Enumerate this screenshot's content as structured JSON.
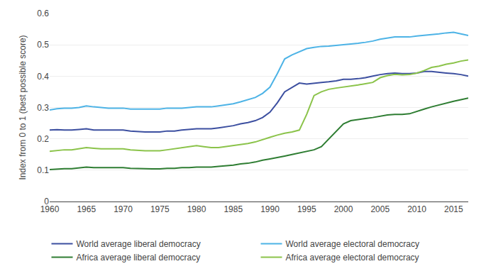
{
  "chart_data": {
    "type": "line",
    "x": [
      1960,
      1961,
      1962,
      1963,
      1964,
      1965,
      1966,
      1967,
      1968,
      1969,
      1970,
      1971,
      1972,
      1973,
      1974,
      1975,
      1976,
      1977,
      1978,
      1979,
      1980,
      1981,
      1982,
      1983,
      1984,
      1985,
      1986,
      1987,
      1988,
      1989,
      1990,
      1991,
      1992,
      1993,
      1994,
      1995,
      1996,
      1997,
      1998,
      1999,
      2000,
      2001,
      2002,
      2003,
      2004,
      2005,
      2006,
      2007,
      2008,
      2009,
      2010,
      2011,
      2012,
      2013,
      2014,
      2015,
      2016,
      2017
    ],
    "series": [
      {
        "name": "World average liberal democracy",
        "color": "#3c4fa0",
        "values": [
          0.228,
          0.229,
          0.228,
          0.228,
          0.23,
          0.232,
          0.228,
          0.228,
          0.228,
          0.228,
          0.228,
          0.225,
          0.223,
          0.222,
          0.222,
          0.222,
          0.225,
          0.225,
          0.228,
          0.23,
          0.232,
          0.232,
          0.232,
          0.235,
          0.238,
          0.242,
          0.248,
          0.252,
          0.258,
          0.268,
          0.285,
          0.315,
          0.35,
          0.365,
          0.378,
          0.375,
          0.378,
          0.38,
          0.382,
          0.385,
          0.39,
          0.39,
          0.392,
          0.395,
          0.4,
          0.405,
          0.408,
          0.41,
          0.408,
          0.408,
          0.41,
          0.415,
          0.415,
          0.412,
          0.41,
          0.408,
          0.405,
          0.4
        ]
      },
      {
        "name": "World average electoral democracy",
        "color": "#4db3e6",
        "values": [
          0.292,
          0.296,
          0.298,
          0.298,
          0.3,
          0.305,
          0.302,
          0.3,
          0.298,
          0.298,
          0.298,
          0.295,
          0.295,
          0.295,
          0.295,
          0.295,
          0.298,
          0.298,
          0.298,
          0.3,
          0.302,
          0.302,
          0.302,
          0.305,
          0.308,
          0.312,
          0.318,
          0.325,
          0.332,
          0.345,
          0.365,
          0.408,
          0.455,
          0.468,
          0.478,
          0.488,
          0.492,
          0.495,
          0.496,
          0.498,
          0.5,
          0.502,
          0.505,
          0.508,
          0.512,
          0.518,
          0.522,
          0.525,
          0.525,
          0.525,
          0.528,
          0.53,
          0.532,
          0.535,
          0.538,
          0.54,
          0.535,
          0.53
        ]
      },
      {
        "name": "Africa average liberal democracy",
        "color": "#2e7d32",
        "values": [
          0.102,
          0.104,
          0.105,
          0.105,
          0.108,
          0.11,
          0.108,
          0.108,
          0.108,
          0.108,
          0.108,
          0.106,
          0.105,
          0.104,
          0.104,
          0.104,
          0.106,
          0.106,
          0.108,
          0.108,
          0.11,
          0.11,
          0.11,
          0.112,
          0.114,
          0.116,
          0.12,
          0.122,
          0.126,
          0.132,
          0.136,
          0.14,
          0.145,
          0.15,
          0.155,
          0.16,
          0.165,
          0.175,
          0.2,
          0.225,
          0.248,
          0.258,
          0.262,
          0.265,
          0.268,
          0.272,
          0.276,
          0.278,
          0.278,
          0.28,
          0.288,
          0.295,
          0.302,
          0.308,
          0.315,
          0.32,
          0.325,
          0.33
        ]
      },
      {
        "name": "Africa average electoral democracy",
        "color": "#8bc34a",
        "values": [
          0.16,
          0.163,
          0.165,
          0.165,
          0.168,
          0.172,
          0.17,
          0.168,
          0.168,
          0.168,
          0.168,
          0.165,
          0.163,
          0.162,
          0.162,
          0.162,
          0.165,
          0.168,
          0.172,
          0.175,
          0.178,
          0.175,
          0.172,
          0.172,
          0.175,
          0.178,
          0.182,
          0.185,
          0.19,
          0.198,
          0.205,
          0.212,
          0.218,
          0.222,
          0.228,
          0.278,
          0.338,
          0.35,
          0.358,
          0.362,
          0.365,
          0.368,
          0.372,
          0.376,
          0.38,
          0.395,
          0.402,
          0.406,
          0.404,
          0.405,
          0.41,
          0.418,
          0.428,
          0.432,
          0.438,
          0.442,
          0.448,
          0.452
        ]
      }
    ],
    "ylabel": "Index from 0 to 1 (best possible score)",
    "xlim": [
      1960,
      2017
    ],
    "xticks": [
      1960,
      1965,
      1970,
      1975,
      1980,
      1985,
      1990,
      1995,
      2000,
      2005,
      2010,
      2015
    ],
    "ylim": [
      0,
      0.6
    ],
    "yticks": [
      0,
      0.1,
      0.2,
      0.3,
      0.4,
      0.5,
      0.6
    ],
    "grid": true,
    "legend": "bottom"
  }
}
